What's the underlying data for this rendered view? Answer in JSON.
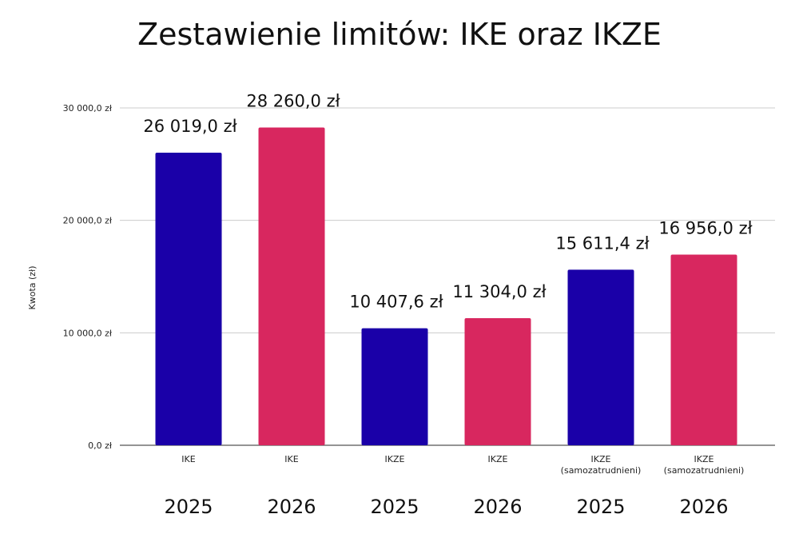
{
  "chart_data": {
    "type": "bar",
    "title": "Zestawienie limitów: IKE oraz IKZE",
    "ylabel": "Kwota (zł)",
    "xlabel": "",
    "ylim": [
      0,
      30000
    ],
    "y_ticks": [
      "0,0 zł",
      "10 000,0 zł",
      "20 000,0 zł",
      "30 000,0 zł"
    ],
    "grid": true,
    "categories": [
      {
        "label": [
          "IKE"
        ],
        "year": "2025"
      },
      {
        "label": [
          "IKE"
        ],
        "year": "2026"
      },
      {
        "label": [
          "IKZE"
        ],
        "year": "2025"
      },
      {
        "label": [
          "IKZE"
        ],
        "year": "2026"
      },
      {
        "label": [
          "IKZE",
          "(samozatrudnieni)"
        ],
        "year": "2025"
      },
      {
        "label": [
          "IKZE",
          "(samozatrudnieni)"
        ],
        "year": "2026"
      }
    ],
    "values": [
      26019.0,
      28260.0,
      10407.6,
      11304.0,
      15611.4,
      16956.0
    ],
    "data_labels": [
      "26 019,0 zł",
      "28 260,0 zł",
      "10 407,6 zł",
      "11 304,0 zł",
      "15 611,4 zł",
      "16 956,0 zł"
    ],
    "colors": {
      "2025": "#1a00a8",
      "2026": "#d8275f"
    }
  }
}
